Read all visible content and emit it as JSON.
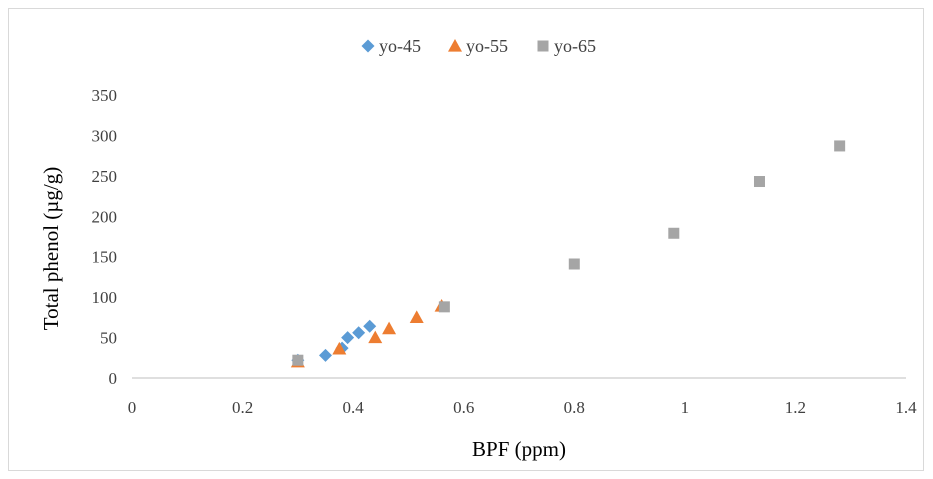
{
  "chart_data": {
    "type": "scatter",
    "title": "",
    "xlabel": "BPF (ppm)",
    "ylabel": "Total phenol (µg/g)",
    "xlim": [
      0,
      1.4
    ],
    "ylim": [
      0,
      350
    ],
    "x_ticks": [
      "0",
      "0.2",
      "0.4",
      "0.6",
      "0.8",
      "1",
      "1.2",
      "1.4"
    ],
    "y_ticks": [
      "0",
      "50",
      "100",
      "150",
      "200",
      "250",
      "300",
      "350"
    ],
    "x_tick_values": [
      0,
      0.2,
      0.4,
      0.6,
      0.8,
      1.0,
      1.2,
      1.4
    ],
    "y_tick_values": [
      0,
      50,
      100,
      150,
      200,
      250,
      300,
      350
    ],
    "grid": false,
    "legend_position": "top",
    "series": [
      {
        "name": "yo-45",
        "marker": "diamond",
        "color": "#5b9bd5",
        "points": [
          [
            0.3,
            22
          ],
          [
            0.35,
            28
          ],
          [
            0.38,
            37
          ],
          [
            0.39,
            50
          ],
          [
            0.41,
            56
          ],
          [
            0.43,
            64
          ]
        ]
      },
      {
        "name": "yo-55",
        "marker": "triangle",
        "color": "#ed7d31",
        "points": [
          [
            0.3,
            20
          ],
          [
            0.375,
            36
          ],
          [
            0.44,
            50
          ],
          [
            0.465,
            61
          ],
          [
            0.515,
            75
          ],
          [
            0.56,
            89
          ]
        ]
      },
      {
        "name": "yo-65",
        "marker": "square",
        "color": "#a5a5a5",
        "points": [
          [
            0.3,
            22
          ],
          [
            0.565,
            88
          ],
          [
            0.8,
            141
          ],
          [
            0.98,
            179
          ],
          [
            1.135,
            243
          ],
          [
            1.28,
            287
          ]
        ]
      }
    ]
  }
}
